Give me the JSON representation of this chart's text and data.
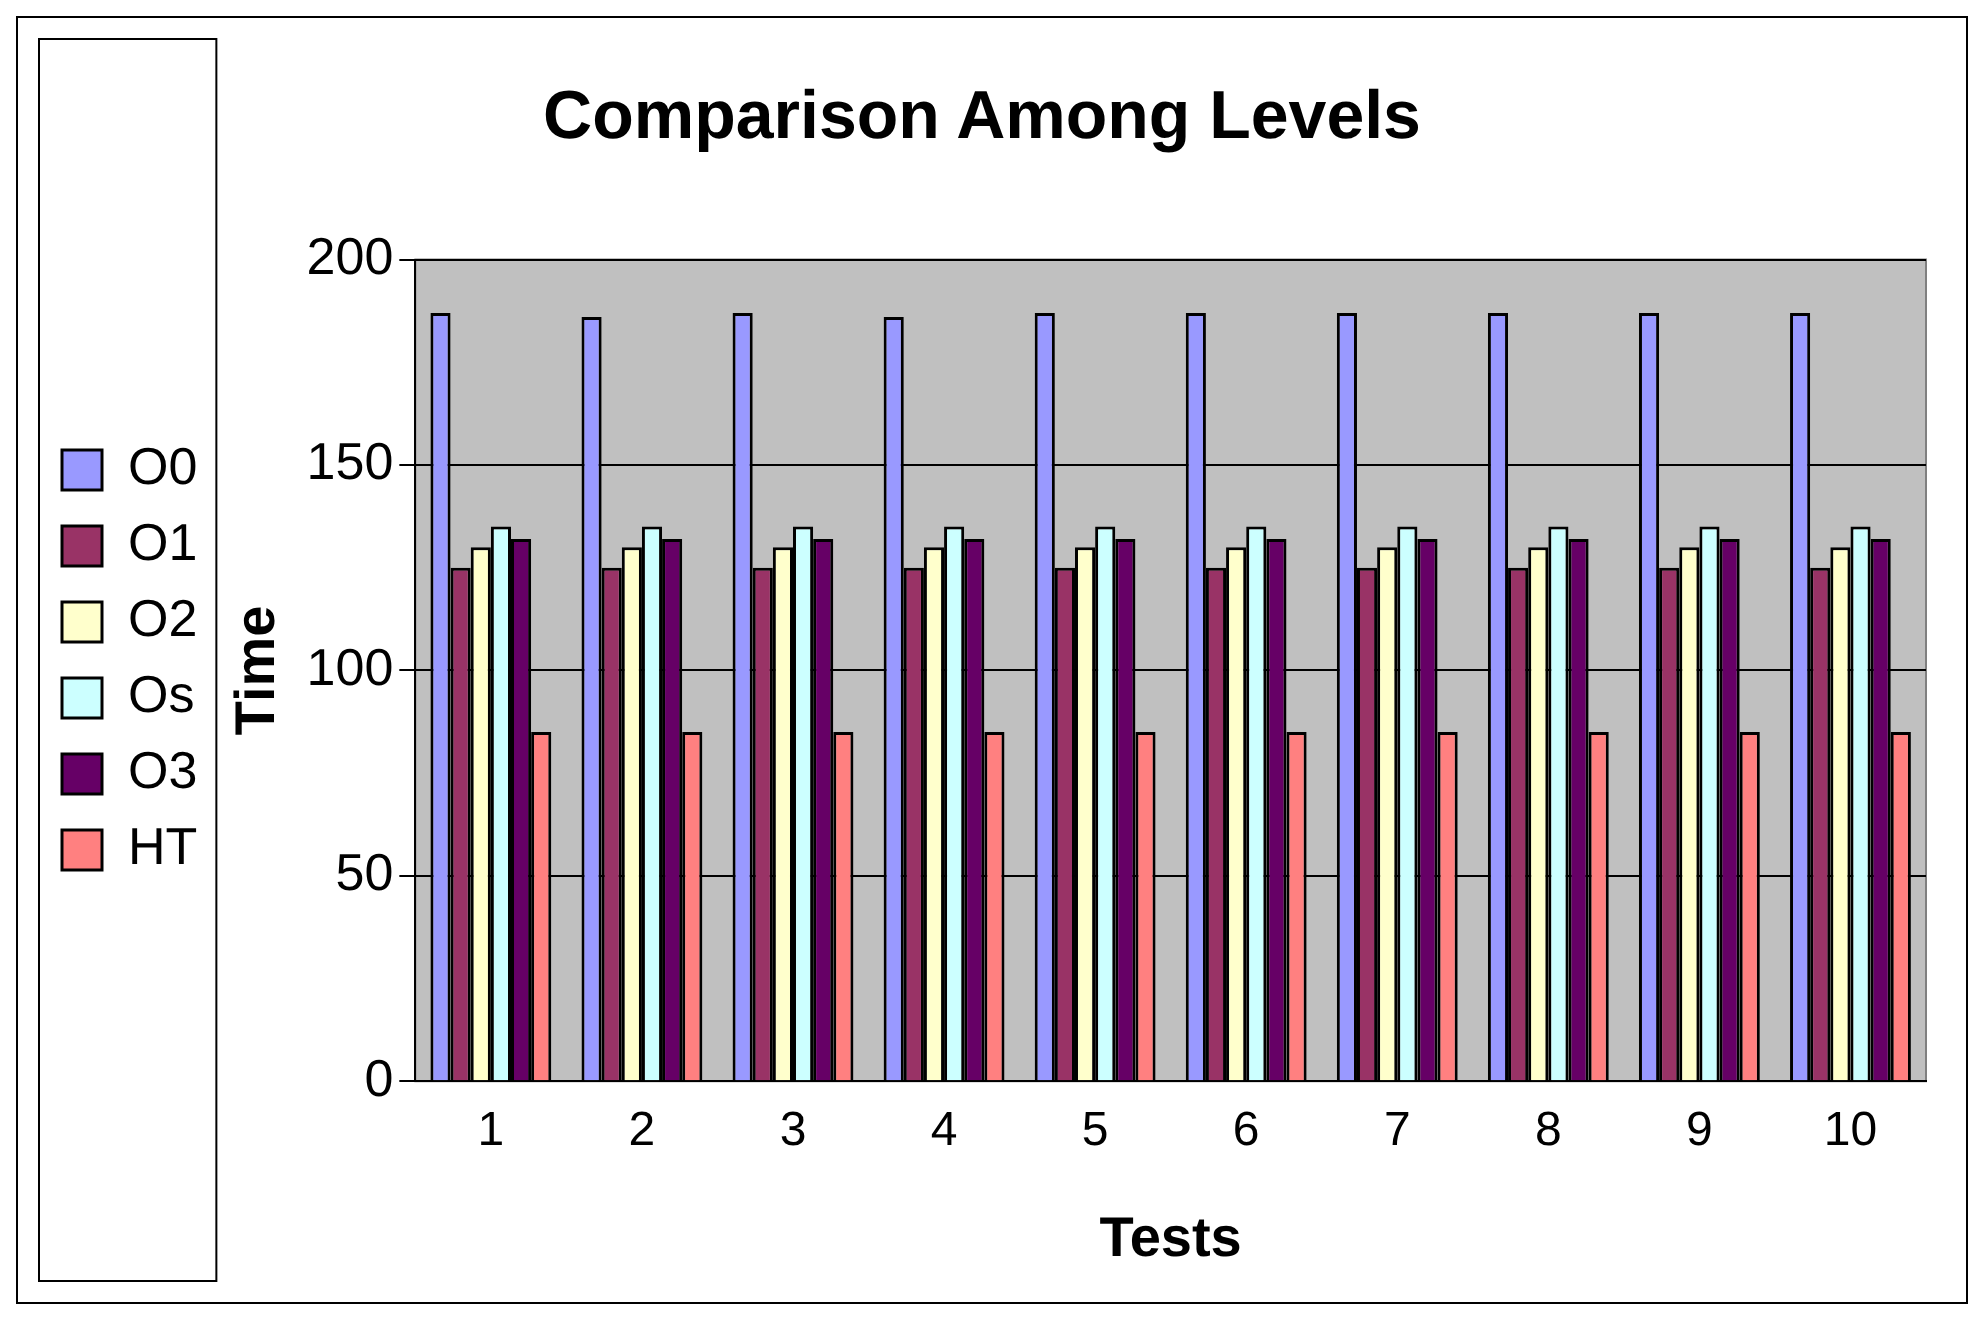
{
  "chart_data": {
    "type": "bar",
    "title": "Comparison Among Levels",
    "xlabel": "Tests",
    "ylabel": "Time",
    "categories": [
      "1",
      "2",
      "3",
      "4",
      "5",
      "6",
      "7",
      "8",
      "9",
      "10"
    ],
    "series": [
      {
        "name": "O0",
        "color": "#9999ff",
        "values": [
          187,
          186,
          187,
          186,
          187,
          187,
          187,
          187,
          187,
          187
        ]
      },
      {
        "name": "O1",
        "color": "#993366",
        "values": [
          125,
          125,
          125,
          125,
          125,
          125,
          125,
          125,
          125,
          125
        ]
      },
      {
        "name": "O2",
        "color": "#ffffcc",
        "values": [
          130,
          130,
          130,
          130,
          130,
          130,
          130,
          130,
          130,
          130
        ]
      },
      {
        "name": "Os",
        "color": "#ccffff",
        "values": [
          135,
          135,
          135,
          135,
          135,
          135,
          135,
          135,
          135,
          135
        ]
      },
      {
        "name": "O3",
        "color": "#660066",
        "values": [
          132,
          132,
          132,
          132,
          132,
          132,
          132,
          132,
          132,
          132
        ]
      },
      {
        "name": "HT",
        "color": "#ff8080",
        "values": [
          85,
          85,
          85,
          85,
          85,
          85,
          85,
          85,
          85,
          85
        ]
      }
    ],
    "ylim": [
      0,
      200
    ],
    "yticks": [
      0,
      50,
      100,
      150,
      200
    ],
    "grid": "y",
    "legend": "left"
  }
}
